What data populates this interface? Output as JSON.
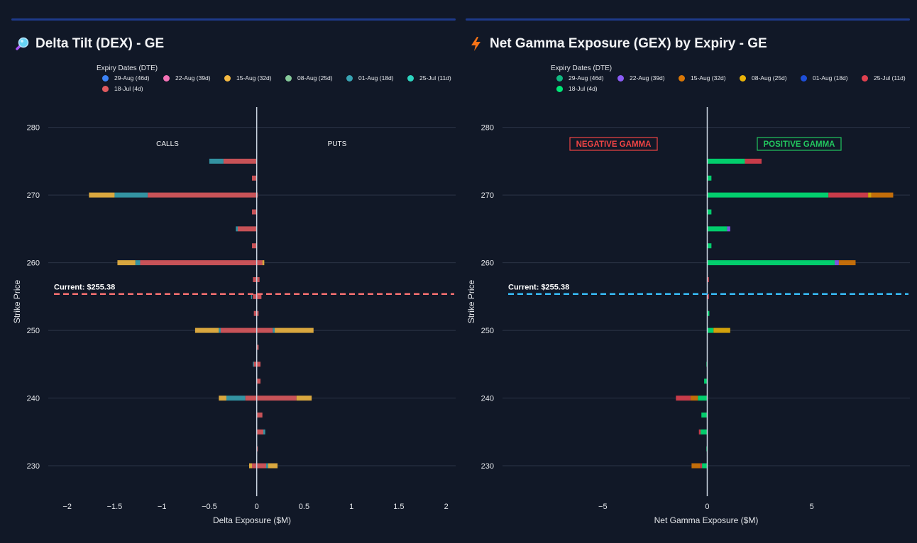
{
  "left_panel": {
    "title": "Delta Tilt (DEX) - GE",
    "title_icon": "magnifier-icon",
    "legend_title": "Expiry Dates (DTE)",
    "legend": [
      {
        "label": "29-Aug (46d)",
        "color": "#3b82f6"
      },
      {
        "label": "22-Aug (39d)",
        "color": "#f472b6"
      },
      {
        "label": "15-Aug (32d)",
        "color": "#f4b942"
      },
      {
        "label": "08-Aug (25d)",
        "color": "#86c99a"
      },
      {
        "label": "01-Aug (18d)",
        "color": "#38a3b3"
      },
      {
        "label": "25-Jul (11d)",
        "color": "#2dd4bf"
      },
      {
        "label": "18-Jul (4d)",
        "color": "#e05a5f"
      }
    ],
    "calls_label": "CALLS",
    "puts_label": "PUTS",
    "current_label": "Current: $255.38"
  },
  "right_panel": {
    "title": "Net Gamma Exposure (GEX) by Expiry - GE",
    "title_icon": "lightning-icon",
    "legend_title": "Expiry Dates (DTE)",
    "legend": [
      {
        "label": "29-Aug (46d)",
        "color": "#10b981"
      },
      {
        "label": "22-Aug (39d)",
        "color": "#8b5cf6"
      },
      {
        "label": "15-Aug (32d)",
        "color": "#d97706"
      },
      {
        "label": "08-Aug (25d)",
        "color": "#eab308"
      },
      {
        "label": "01-Aug (18d)",
        "color": "#1d4ed8"
      },
      {
        "label": "25-Jul (11d)",
        "color": "#e0404f"
      },
      {
        "label": "18-Jul (4d)",
        "color": "#00e676"
      }
    ],
    "negative_label": "NEGATIVE GAMMA",
    "positive_label": "POSITIVE GAMMA",
    "current_label": "Current: $255.38"
  },
  "chart_data": [
    {
      "type": "bar",
      "orientation": "horizontal",
      "stacked": true,
      "title": "Delta Tilt (DEX) - GE",
      "xlabel": "Delta Exposure ($M)",
      "ylabel": "Strike Price",
      "xlim": [
        -2.2,
        2.1
      ],
      "ylim": [
        225.5,
        283
      ],
      "x_ticks": [
        -2,
        -1.5,
        -1,
        -0.5,
        0,
        0.5,
        1,
        1.5,
        2
      ],
      "x_tick_labels": [
        "−2",
        "−1.5",
        "−1",
        "−0.5",
        "0",
        "0.5",
        "1",
        "1.5",
        "2"
      ],
      "y_ticks": [
        230,
        240,
        250,
        260,
        270,
        280
      ],
      "current_price": 255.38,
      "current_line_color": "#f87171",
      "bars": [
        {
          "strike": 275,
          "segments": [
            [
              "01-Aug (18d)",
              -0.35,
              -0.5
            ],
            [
              "18-Jul (4d)",
              0,
              -0.35
            ]
          ]
        },
        {
          "strike": 272.5,
          "segments": [
            [
              "18-Jul (4d)",
              0,
              -0.05
            ]
          ]
        },
        {
          "strike": 270,
          "segments": [
            [
              "15-Aug (32d)",
              -1.5,
              -1.77
            ],
            [
              "01-Aug (18d)",
              -1.15,
              -1.5
            ],
            [
              "18-Jul (4d)",
              0,
              -1.15
            ],
            [
              "18-Jul (4d)",
              0,
              0.01
            ]
          ]
        },
        {
          "strike": 267.5,
          "segments": [
            [
              "18-Jul (4d)",
              0,
              -0.05
            ]
          ]
        },
        {
          "strike": 265,
          "segments": [
            [
              "01-Aug (18d)",
              -0.2,
              -0.22
            ],
            [
              "18-Jul (4d)",
              0,
              -0.2
            ]
          ]
        },
        {
          "strike": 262.5,
          "segments": [
            [
              "18-Jul (4d)",
              0,
              -0.05
            ]
          ]
        },
        {
          "strike": 260,
          "segments": [
            [
              "15-Aug (32d)",
              -1.28,
              -1.47
            ],
            [
              "01-Aug (18d)",
              -1.23,
              -1.28
            ],
            [
              "18-Jul (4d)",
              0,
              -1.23
            ],
            [
              "18-Jul (4d)",
              0,
              0.06
            ],
            [
              "15-Aug (32d)",
              0.06,
              0.08
            ]
          ]
        },
        {
          "strike": 257.5,
          "segments": [
            [
              "18-Jul (4d)",
              -0.04,
              0.03
            ]
          ]
        },
        {
          "strike": 255,
          "segments": [
            [
              "01-Aug (18d)",
              -0.05,
              -0.06
            ],
            [
              "18-Jul (4d)",
              -0.04,
              0.05
            ]
          ]
        },
        {
          "strike": 252.5,
          "segments": [
            [
              "18-Jul (4d)",
              -0.03,
              0.02
            ]
          ]
        },
        {
          "strike": 250,
          "segments": [
            [
              "15-Aug (32d)",
              -0.4,
              -0.65
            ],
            [
              "01-Aug (18d)",
              -0.38,
              -0.4
            ],
            [
              "18-Jul (4d)",
              0,
              -0.38
            ],
            [
              "18-Jul (4d)",
              0,
              0.17
            ],
            [
              "01-Aug (18d)",
              0.17,
              0.19
            ],
            [
              "15-Aug (32d)",
              0.19,
              0.6
            ]
          ]
        },
        {
          "strike": 247.5,
          "segments": [
            [
              "18-Jul (4d)",
              0,
              0.02
            ]
          ]
        },
        {
          "strike": 245,
          "segments": [
            [
              "01-Aug (18d)",
              -0.03,
              -0.04
            ],
            [
              "18-Jul (4d)",
              -0.03,
              0.04
            ]
          ]
        },
        {
          "strike": 242.5,
          "segments": [
            [
              "18-Jul (4d)",
              0,
              0.04
            ]
          ]
        },
        {
          "strike": 240,
          "segments": [
            [
              "15-Aug (32d)",
              -0.32,
              -0.4
            ],
            [
              "01-Aug (18d)",
              -0.12,
              -0.32
            ],
            [
              "18-Jul (4d)",
              0,
              -0.12
            ],
            [
              "18-Jul (4d)",
              0,
              0.42
            ],
            [
              "15-Aug (32d)",
              0.42,
              0.58
            ]
          ]
        },
        {
          "strike": 237.5,
          "segments": [
            [
              "18-Jul (4d)",
              0,
              0.06
            ]
          ]
        },
        {
          "strike": 235,
          "segments": [
            [
              "18-Jul (4d)",
              0,
              0.07
            ],
            [
              "01-Aug (18d)",
              0.07,
              0.09
            ]
          ]
        },
        {
          "strike": 232.5,
          "segments": [
            [
              "18-Jul (4d)",
              0,
              0.01
            ]
          ]
        },
        {
          "strike": 230,
          "segments": [
            [
              "15-Aug (32d)",
              -0.05,
              -0.08
            ],
            [
              "18-Jul (4d)",
              -0.05,
              0
            ],
            [
              "18-Jul (4d)",
              0,
              0.1
            ],
            [
              "01-Aug (18d)",
              0.1,
              0.12
            ],
            [
              "15-Aug (32d)",
              0.12,
              0.22
            ]
          ]
        }
      ]
    },
    {
      "type": "bar",
      "orientation": "horizontal",
      "stacked": true,
      "title": "Net Gamma Exposure (GEX) by Expiry - GE",
      "xlabel": "Net Gamma Exposure ($M)",
      "ylabel": "Strike Price",
      "xlim": [
        -9.8,
        9.7
      ],
      "ylim": [
        225.5,
        283
      ],
      "x_ticks": [
        -5,
        0,
        5
      ],
      "x_tick_labels": [
        "−5",
        "0",
        "5"
      ],
      "y_ticks": [
        230,
        240,
        250,
        260,
        270,
        280
      ],
      "current_price": 255.38,
      "current_line_color": "#38bdf8",
      "bars": [
        {
          "strike": 275,
          "segments": [
            [
              "18-Jul (4d)",
              0,
              1.8
            ],
            [
              "25-Jul (11d)",
              1.8,
              2.6
            ]
          ]
        },
        {
          "strike": 272.5,
          "segments": [
            [
              "18-Jul (4d)",
              0,
              0.2
            ]
          ]
        },
        {
          "strike": 270,
          "segments": [
            [
              "18-Jul (4d)",
              0,
              5.8
            ],
            [
              "25-Jul (11d)",
              5.8,
              7.7
            ],
            [
              "08-Aug (25d)",
              7.7,
              7.85
            ],
            [
              "15-Aug (32d)",
              7.85,
              8.9
            ]
          ]
        },
        {
          "strike": 267.5,
          "segments": [
            [
              "18-Jul (4d)",
              0,
              0.2
            ]
          ]
        },
        {
          "strike": 265,
          "segments": [
            [
              "18-Jul (4d)",
              0,
              0.95
            ],
            [
              "22-Aug (39d)",
              0.95,
              1.1
            ]
          ]
        },
        {
          "strike": 262.5,
          "segments": [
            [
              "18-Jul (4d)",
              0,
              0.2
            ]
          ]
        },
        {
          "strike": 260,
          "segments": [
            [
              "18-Jul (4d)",
              0,
              6.1
            ],
            [
              "22-Aug (39d)",
              6.1,
              6.3
            ],
            [
              "15-Aug (32d)",
              6.3,
              7.1
            ]
          ]
        },
        {
          "strike": 257.5,
          "segments": [
            [
              "25-Jul (11d)",
              0,
              0.08
            ]
          ]
        },
        {
          "strike": 255,
          "segments": [
            [
              "25-Jul (11d)",
              0,
              0.08
            ]
          ]
        },
        {
          "strike": 252.5,
          "segments": [
            [
              "18-Jul (4d)",
              0,
              0.1
            ]
          ]
        },
        {
          "strike": 250,
          "segments": [
            [
              "18-Jul (4d)",
              0,
              0.3
            ],
            [
              "08-Aug (25d)",
              0.3,
              1.1
            ]
          ]
        },
        {
          "strike": 245,
          "segments": [
            [
              "18-Jul (4d)",
              0,
              -0.04
            ]
          ]
        },
        {
          "strike": 242.5,
          "segments": [
            [
              "18-Jul (4d)",
              0,
              -0.15
            ]
          ]
        },
        {
          "strike": 240,
          "segments": [
            [
              "18-Jul (4d)",
              0,
              -0.45
            ],
            [
              "15-Aug (32d)",
              -0.45,
              -0.8
            ],
            [
              "25-Jul (11d)",
              -0.8,
              -1.5
            ]
          ]
        },
        {
          "strike": 237.5,
          "segments": [
            [
              "18-Jul (4d)",
              0,
              -0.28
            ]
          ]
        },
        {
          "strike": 235,
          "segments": [
            [
              "18-Jul (4d)",
              0,
              -0.32
            ],
            [
              "25-Jul (11d)",
              -0.32,
              -0.4
            ]
          ]
        },
        {
          "strike": 232.5,
          "segments": [
            [
              "18-Jul (4d)",
              0,
              -0.04
            ]
          ]
        },
        {
          "strike": 230,
          "segments": [
            [
              "18-Jul (4d)",
              0,
              -0.25
            ],
            [
              "25-Jul (11d)",
              -0.25,
              -0.35
            ],
            [
              "15-Aug (32d)",
              -0.35,
              -0.75
            ]
          ]
        }
      ]
    }
  ]
}
